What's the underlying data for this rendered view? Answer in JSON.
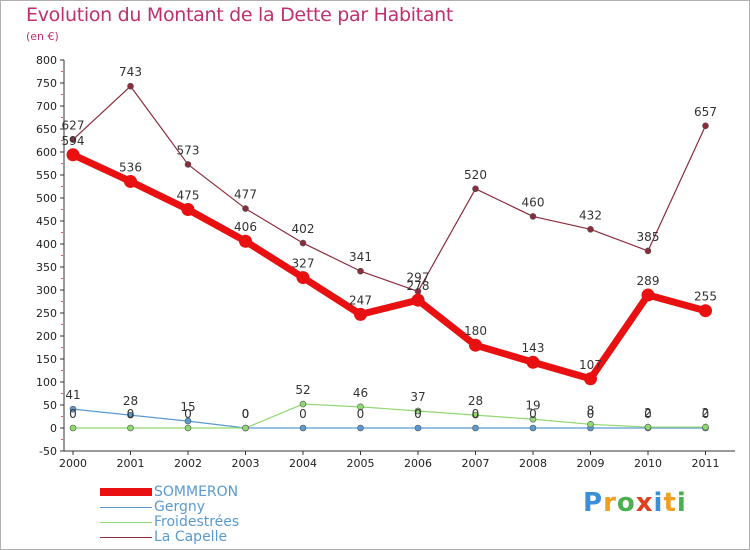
{
  "header": {
    "title": "Evolution du Montant de la Dette par Habitant",
    "subtitle": "(en €)"
  },
  "logo": {
    "text": "Proxiti",
    "colors": [
      "#3a8fd6",
      "#f0a020",
      "#4caf50",
      "#e04020",
      "#3a8fd6",
      "#f0a020",
      "#4caf50"
    ]
  },
  "chart_data": {
    "type": "line",
    "title": "Evolution du Montant de la Dette par Habitant",
    "subtitle": "(en €)",
    "xlabel": "",
    "ylabel": "",
    "categories": [
      "2000",
      "2001",
      "2002",
      "2003",
      "2004",
      "2005",
      "2006",
      "2007",
      "2008",
      "2009",
      "2010",
      "2011"
    ],
    "ylim": [
      -50,
      800
    ],
    "yticks": [
      -50,
      0,
      50,
      100,
      150,
      200,
      250,
      300,
      350,
      400,
      450,
      500,
      550,
      600,
      650,
      700,
      750,
      800
    ],
    "grid": false,
    "legend": "bottom-left",
    "series": [
      {
        "name": "SOMMERON",
        "color": "#e81010",
        "values": [
          594,
          536,
          475,
          406,
          327,
          247,
          278,
          180,
          143,
          107,
          289,
          255
        ],
        "labels": [
          "594",
          "536",
          "475",
          "406",
          "327",
          "247",
          "278",
          "180",
          "143",
          "107",
          "289",
          "255"
        ]
      },
      {
        "name": "Gergny",
        "color": "#5a9ad0",
        "values": [
          41,
          28,
          15,
          0,
          0,
          0,
          0,
          0,
          0,
          0,
          0,
          0
        ],
        "labels": [
          "41",
          "28",
          "15",
          "0",
          "0",
          "0",
          "0",
          "0",
          "0",
          "0",
          "0",
          "0"
        ]
      },
      {
        "name": "Froidestrées",
        "color": "#90d870",
        "values": [
          0,
          0,
          0,
          0,
          52,
          46,
          37,
          28,
          19,
          8,
          2,
          2
        ],
        "labels": [
          "0",
          "0",
          "0",
          "0",
          "52",
          "46",
          "37",
          "28",
          "19",
          "8",
          "2",
          "2"
        ]
      },
      {
        "name": "La Capelle",
        "color": "#8b2c3c",
        "values": [
          627,
          743,
          573,
          477,
          402,
          341,
          297,
          520,
          460,
          432,
          385,
          657
        ],
        "labels": [
          "627",
          "743",
          "573",
          "477",
          "402",
          "341",
          "297",
          "520",
          "460",
          "432",
          "385",
          "657"
        ]
      }
    ]
  }
}
